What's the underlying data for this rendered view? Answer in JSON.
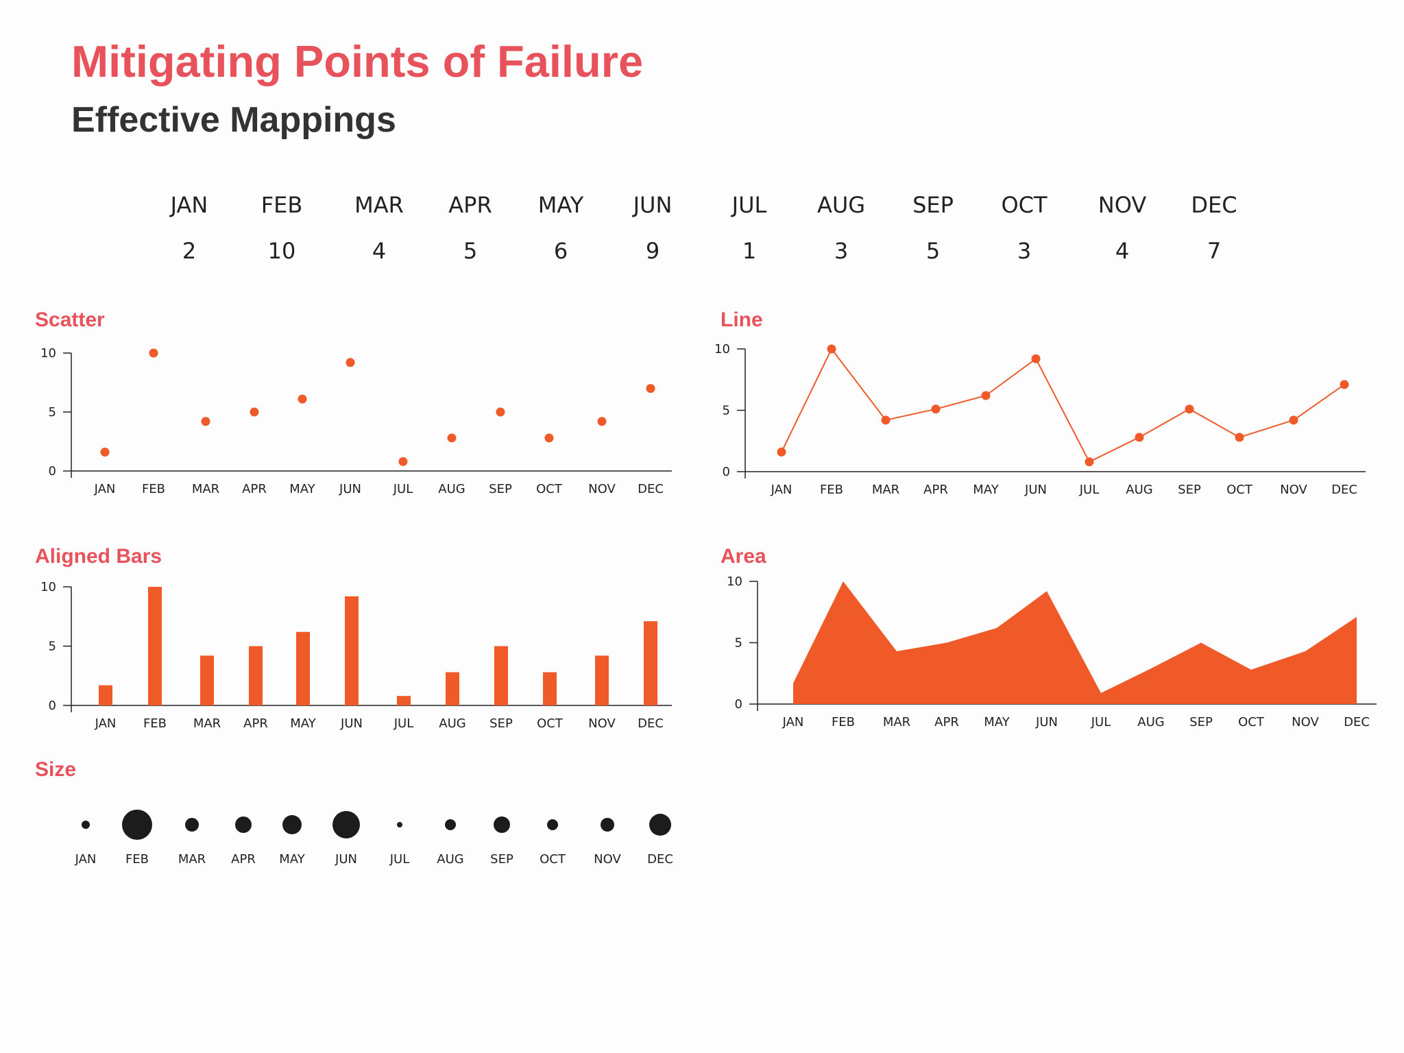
{
  "page": {
    "title": "Mitigating Points of Failure",
    "subtitle": "Effective Mappings"
  },
  "colors": {
    "accent": "#e8525a",
    "mark": "#f05a28",
    "ink": "#222222"
  },
  "chart_data": [
    {
      "type": "table",
      "title": "",
      "categories": [
        "JAN",
        "FEB",
        "MAR",
        "APR",
        "MAY",
        "JUN",
        "JUL",
        "AUG",
        "SEP",
        "OCT",
        "NOV",
        "DEC"
      ],
      "values": [
        2,
        10,
        4,
        5,
        6,
        9,
        1,
        3,
        5,
        3,
        4,
        7
      ]
    },
    {
      "type": "scatter",
      "title": "Scatter",
      "categories": [
        "JAN",
        "FEB",
        "MAR",
        "APR",
        "MAY",
        "JUN",
        "JUL",
        "AUG",
        "SEP",
        "OCT",
        "NOV",
        "DEC"
      ],
      "values": [
        1.6,
        10,
        4.2,
        5,
        6.1,
        9.2,
        0.8,
        2.8,
        5,
        2.8,
        4.2,
        7
      ],
      "yticks": [
        0,
        5,
        10
      ],
      "ylim": [
        0,
        10
      ]
    },
    {
      "type": "line",
      "title": "Line",
      "categories": [
        "JAN",
        "FEB",
        "MAR",
        "APR",
        "MAY",
        "JUN",
        "JUL",
        "AUG",
        "SEP",
        "OCT",
        "NOV",
        "DEC"
      ],
      "values": [
        1.6,
        10,
        4.2,
        5.1,
        6.2,
        9.2,
        0.8,
        2.8,
        5.1,
        2.8,
        4.2,
        7.1
      ],
      "yticks": [
        0,
        5,
        10
      ],
      "ylim": [
        0,
        10
      ]
    },
    {
      "type": "bar",
      "title": "Aligned Bars",
      "categories": [
        "JAN",
        "FEB",
        "MAR",
        "APR",
        "MAY",
        "JUN",
        "JUL",
        "AUG",
        "SEP",
        "OCT",
        "NOV",
        "DEC"
      ],
      "values": [
        1.7,
        10,
        4.2,
        5,
        6.2,
        9.2,
        0.8,
        2.8,
        5,
        2.8,
        4.2,
        7.1
      ],
      "yticks": [
        0,
        5,
        10
      ],
      "ylim": [
        0,
        10
      ]
    },
    {
      "type": "area",
      "title": "Area",
      "categories": [
        "JAN",
        "FEB",
        "MAR",
        "APR",
        "MAY",
        "JUN",
        "JUL",
        "AUG",
        "SEP",
        "OCT",
        "NOV",
        "DEC"
      ],
      "values": [
        1.7,
        10,
        4.3,
        5,
        6.2,
        9.2,
        0.9,
        2.9,
        5,
        2.8,
        4.3,
        7.1
      ],
      "yticks": [
        0,
        5,
        10
      ],
      "ylim": [
        0,
        10
      ]
    },
    {
      "type": "scatter",
      "title": "Size",
      "encoding": "dot size",
      "categories": [
        "JAN",
        "FEB",
        "MAR",
        "APR",
        "MAY",
        "JUN",
        "JUL",
        "AUG",
        "SEP",
        "OCT",
        "NOV",
        "DEC"
      ],
      "values": [
        2,
        10,
        4,
        5,
        6,
        9,
        1,
        3,
        5,
        3,
        4,
        7
      ]
    }
  ]
}
